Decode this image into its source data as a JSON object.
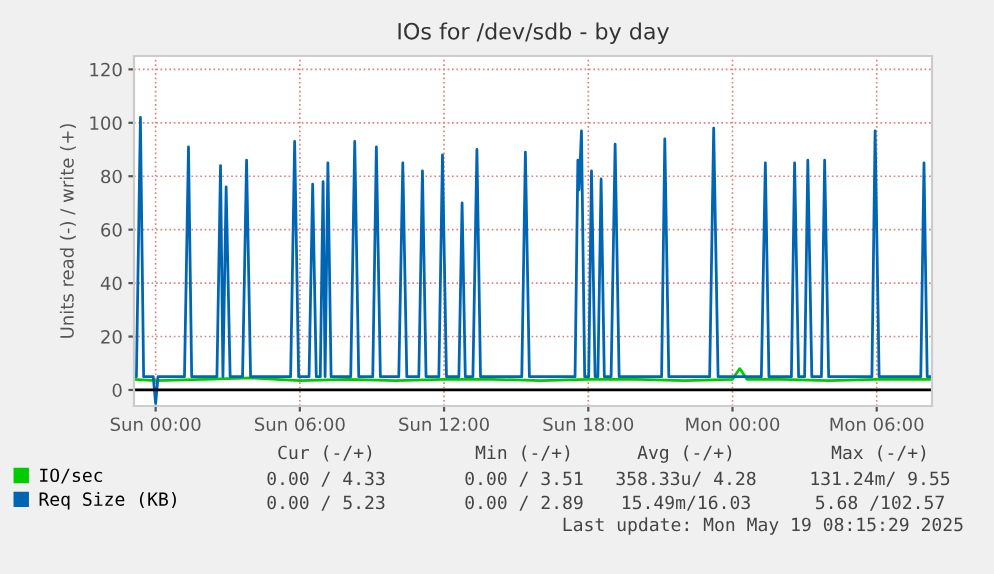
{
  "chart_data": {
    "type": "line",
    "title": "IOs for /dev/sdb - by day",
    "ylabel": "Units read (-) / write (+)",
    "xlim": [
      "2025-05-17T23:06",
      "2025-05-19T08:18"
    ],
    "xticks": [
      {
        "value": "2025-05-18T00:00",
        "label": "Sun 00:00"
      },
      {
        "value": "2025-05-18T06:00",
        "label": "Sun 06:00"
      },
      {
        "value": "2025-05-18T12:00",
        "label": "Sun 12:00"
      },
      {
        "value": "2025-05-18T18:00",
        "label": "Sun 18:00"
      },
      {
        "value": "2025-05-19T00:00",
        "label": "Mon 00:00"
      },
      {
        "value": "2025-05-19T06:00",
        "label": "Mon 06:00"
      }
    ],
    "ylim": [
      -6,
      125
    ],
    "yticks": [
      0,
      20,
      40,
      60,
      80,
      100,
      120
    ],
    "grid": true,
    "legend": "bottom left",
    "ref_lines": [
      {
        "axis": "y",
        "value": 0,
        "color": "#000000"
      }
    ],
    "series": [
      {
        "name": "IO/sec",
        "color": "#00cc00",
        "x": [
          "2025-05-17T23:06",
          "2025-05-18T00:00",
          "2025-05-18T02:00",
          "2025-05-18T04:00",
          "2025-05-18T06:00",
          "2025-05-18T08:00",
          "2025-05-18T10:00",
          "2025-05-18T12:00",
          "2025-05-18T14:00",
          "2025-05-18T16:00",
          "2025-05-18T18:00",
          "2025-05-18T20:00",
          "2025-05-18T22:00",
          "2025-05-19T00:00",
          "2025-05-19T00:18",
          "2025-05-19T00:36",
          "2025-05-19T02:00",
          "2025-05-19T04:00",
          "2025-05-19T06:00",
          "2025-05-19T08:18"
        ],
        "values": [
          4,
          3.5,
          4,
          4.5,
          3.5,
          4,
          3.5,
          4,
          4,
          3.5,
          4,
          4,
          3.5,
          4,
          8,
          4,
          4,
          3.5,
          4,
          4
        ]
      },
      {
        "name": "Req Size (KB)",
        "color": "#0066b3",
        "x": [
          "2025-05-17T23:06",
          "2025-05-17T23:12",
          "2025-05-17T23:22",
          "2025-05-17T23:30",
          "2025-05-17T23:54",
          "2025-05-18T00:00",
          "2025-05-18T00:06",
          "2025-05-18T01:12",
          "2025-05-18T01:22",
          "2025-05-18T01:30",
          "2025-05-18T02:33",
          "2025-05-18T02:42",
          "2025-05-18T02:48",
          "2025-05-18T02:56",
          "2025-05-18T03:06",
          "2025-05-18T03:37",
          "2025-05-18T03:47",
          "2025-05-18T03:57",
          "2025-05-18T05:37",
          "2025-05-18T05:47",
          "2025-05-18T05:57",
          "2025-05-18T06:23",
          "2025-05-18T06:32",
          "2025-05-18T06:41",
          "2025-05-18T06:51",
          "2025-05-18T06:58",
          "2025-05-18T07:03",
          "2025-05-18T07:10",
          "2025-05-18T07:18",
          "2025-05-18T08:07",
          "2025-05-18T08:17",
          "2025-05-18T08:27",
          "2025-05-18T09:02",
          "2025-05-18T09:11",
          "2025-05-18T09:21",
          "2025-05-18T10:07",
          "2025-05-18T10:17",
          "2025-05-18T10:27",
          "2025-05-18T10:57",
          "2025-05-18T11:06",
          "2025-05-18T11:15",
          "2025-05-18T11:47",
          "2025-05-18T11:56",
          "2025-05-18T12:06",
          "2025-05-18T12:37",
          "2025-05-18T12:45",
          "2025-05-18T12:53",
          "2025-05-18T13:12",
          "2025-05-18T13:22",
          "2025-05-18T13:31",
          "2025-05-18T15:14",
          "2025-05-18T15:23",
          "2025-05-18T15:33",
          "2025-05-18T17:27",
          "2025-05-18T17:34",
          "2025-05-18T17:37",
          "2025-05-18T17:43",
          "2025-05-18T17:51",
          "2025-05-18T18:01",
          "2025-05-18T18:08",
          "2025-05-18T18:17",
          "2025-05-18T18:24",
          "2025-05-18T18:32",
          "2025-05-18T18:40",
          "2025-05-18T18:57",
          "2025-05-18T19:07",
          "2025-05-18T19:17",
          "2025-05-18T21:03",
          "2025-05-18T21:11",
          "2025-05-18T21:21",
          "2025-05-18T23:03",
          "2025-05-18T23:13",
          "2025-05-18T23:24",
          "2025-05-19T01:12",
          "2025-05-19T01:22",
          "2025-05-19T01:31",
          "2025-05-19T02:27",
          "2025-05-19T02:35",
          "2025-05-19T02:45",
          "2025-05-19T03:00",
          "2025-05-19T03:08",
          "2025-05-19T03:18",
          "2025-05-19T03:42",
          "2025-05-19T03:50",
          "2025-05-19T04:00",
          "2025-05-19T05:48",
          "2025-05-19T05:56",
          "2025-05-19T06:06",
          "2025-05-19T07:50",
          "2025-05-19T07:58",
          "2025-05-19T08:06",
          "2025-05-19T08:18"
        ],
        "values": [
          5,
          5,
          102,
          5,
          5,
          -5,
          5,
          5,
          91,
          5,
          5,
          84,
          5,
          76,
          5,
          5,
          86,
          5,
          5,
          93,
          5,
          5,
          77,
          5,
          5,
          78,
          5,
          85,
          5,
          5,
          93,
          5,
          5,
          91,
          5,
          5,
          85,
          5,
          5,
          82,
          5,
          5,
          88,
          5,
          5,
          70,
          5,
          5,
          90,
          5,
          5,
          89,
          5,
          5,
          86,
          75,
          97,
          5,
          5,
          82,
          5,
          5,
          79,
          5,
          5,
          92,
          5,
          5,
          94,
          5,
          5,
          98,
          5,
          5,
          85,
          5,
          5,
          85,
          5,
          5,
          86,
          5,
          5,
          86,
          5,
          5,
          97,
          5,
          5,
          85,
          5,
          5
        ]
      }
    ],
    "annotations": [
      "Cur (-/+)",
      "Min (-/+)",
      "Avg (-/+)",
      "Max (-/+)",
      "0.00 / 4.33",
      "0.00 / 3.51",
      "358.33u/ 4.28",
      "131.24m/ 9.55",
      "0.00 / 5.23",
      "0.00 / 2.89",
      "15.49m/16.03",
      "5.68 /102.57",
      "Last update: Mon May 19 08:15:29 2025"
    ]
  }
}
